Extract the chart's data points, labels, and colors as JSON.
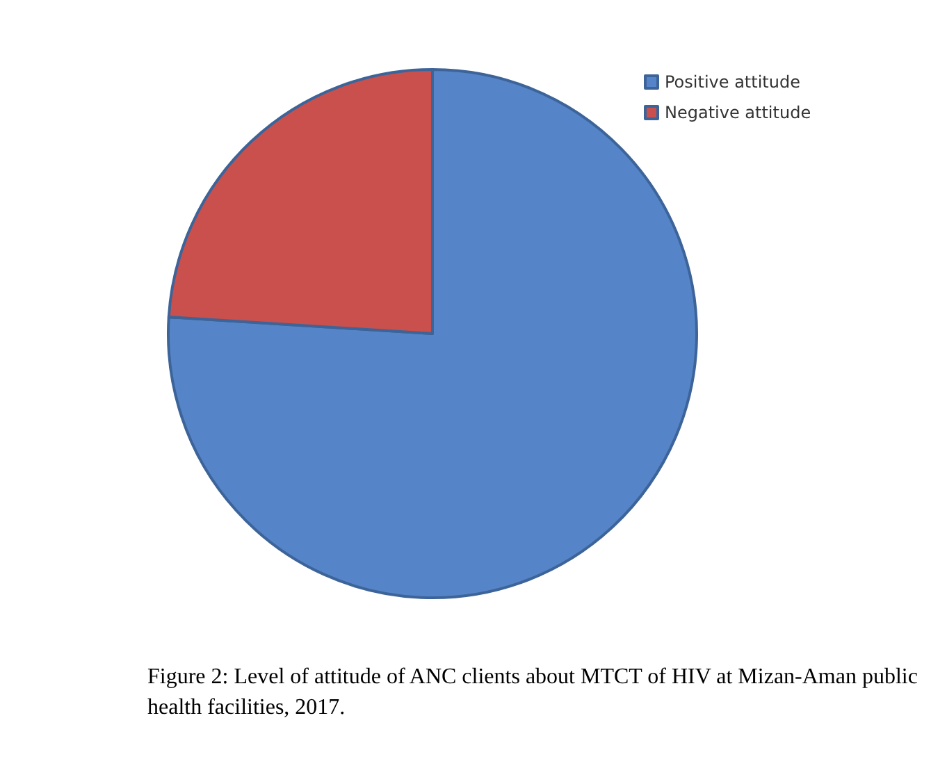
{
  "chart_data": {
    "type": "pie",
    "categories": [
      "Positive attitude",
      "Negative attitude"
    ],
    "values": [
      76,
      24
    ],
    "colors": [
      "#5585c8",
      "#c9504c"
    ],
    "legend": "top right",
    "annotations": [
      "Figure 2: Level of attitude of ANC clients about MTCT of HIV at Mizan-Aman public health facilities, 2017."
    ]
  }
}
